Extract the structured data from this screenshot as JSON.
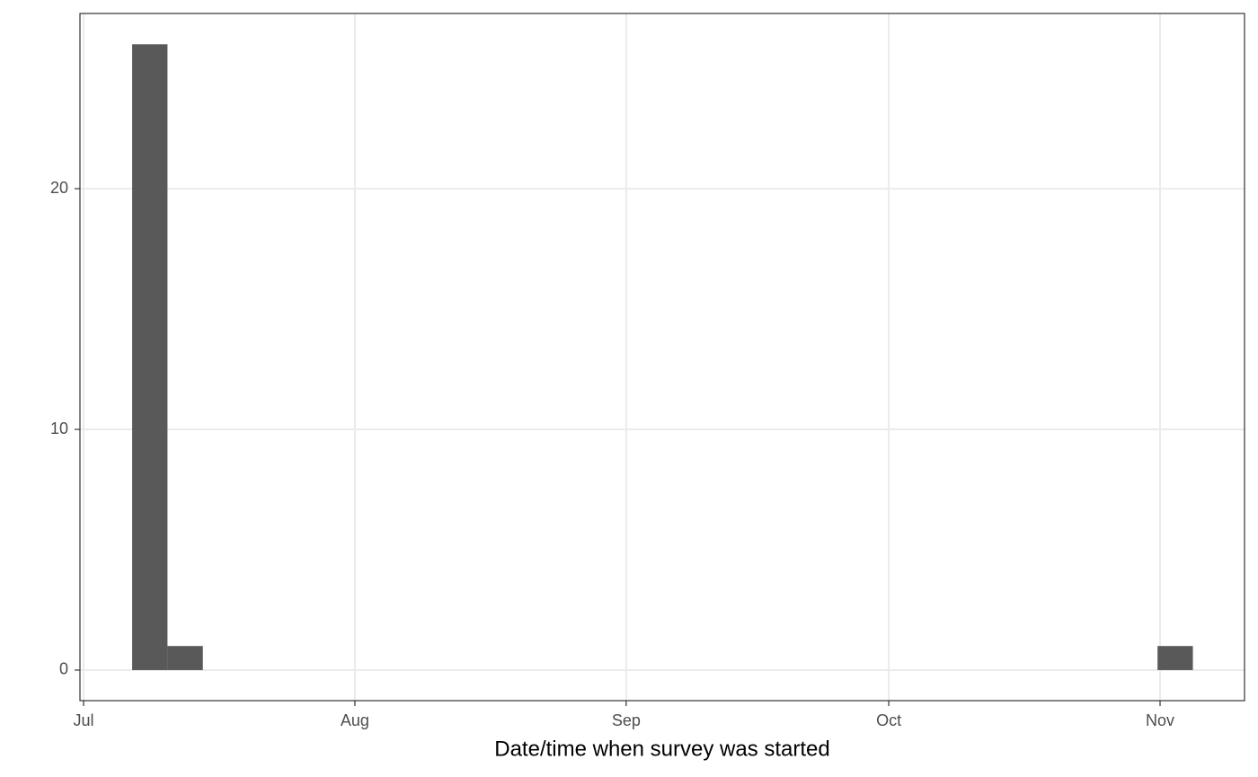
{
  "chart_data": {
    "type": "histogram",
    "x_label": "Date/time when survey was started",
    "bins": [
      5.55,
      9.59,
      13.63,
      17.67,
      21.71,
      25.75,
      29.79,
      33.83,
      37.87,
      41.91,
      45.95,
      49.99,
      54.03,
      58.07,
      62.11,
      66.15,
      70.19,
      74.23,
      78.27,
      82.31,
      86.35,
      90.39,
      94.43,
      98.47,
      102.51,
      106.55,
      110.59,
      114.63,
      118.67,
      122.71,
      126.75
    ],
    "values": [
      26,
      1,
      0,
      0,
      0,
      0,
      0,
      0,
      0,
      0,
      0,
      0,
      0,
      0,
      0,
      0,
      0,
      0,
      0,
      0,
      0,
      0,
      0,
      0,
      0,
      0,
      0,
      0,
      0,
      1
    ],
    "color": "#595959",
    "xlim": [
      -0.41,
      132.65
    ],
    "xticks": [
      {
        "value": 0,
        "label": "Jul"
      },
      {
        "value": 31,
        "label": "Aug"
      },
      {
        "value": 62,
        "label": "Sep"
      },
      {
        "value": 92,
        "label": "Oct"
      },
      {
        "value": 123,
        "label": "Nov"
      }
    ],
    "ylim": [
      -1.27,
      27.28
    ],
    "yticks": [
      0,
      10,
      20
    ],
    "grid": true
  }
}
